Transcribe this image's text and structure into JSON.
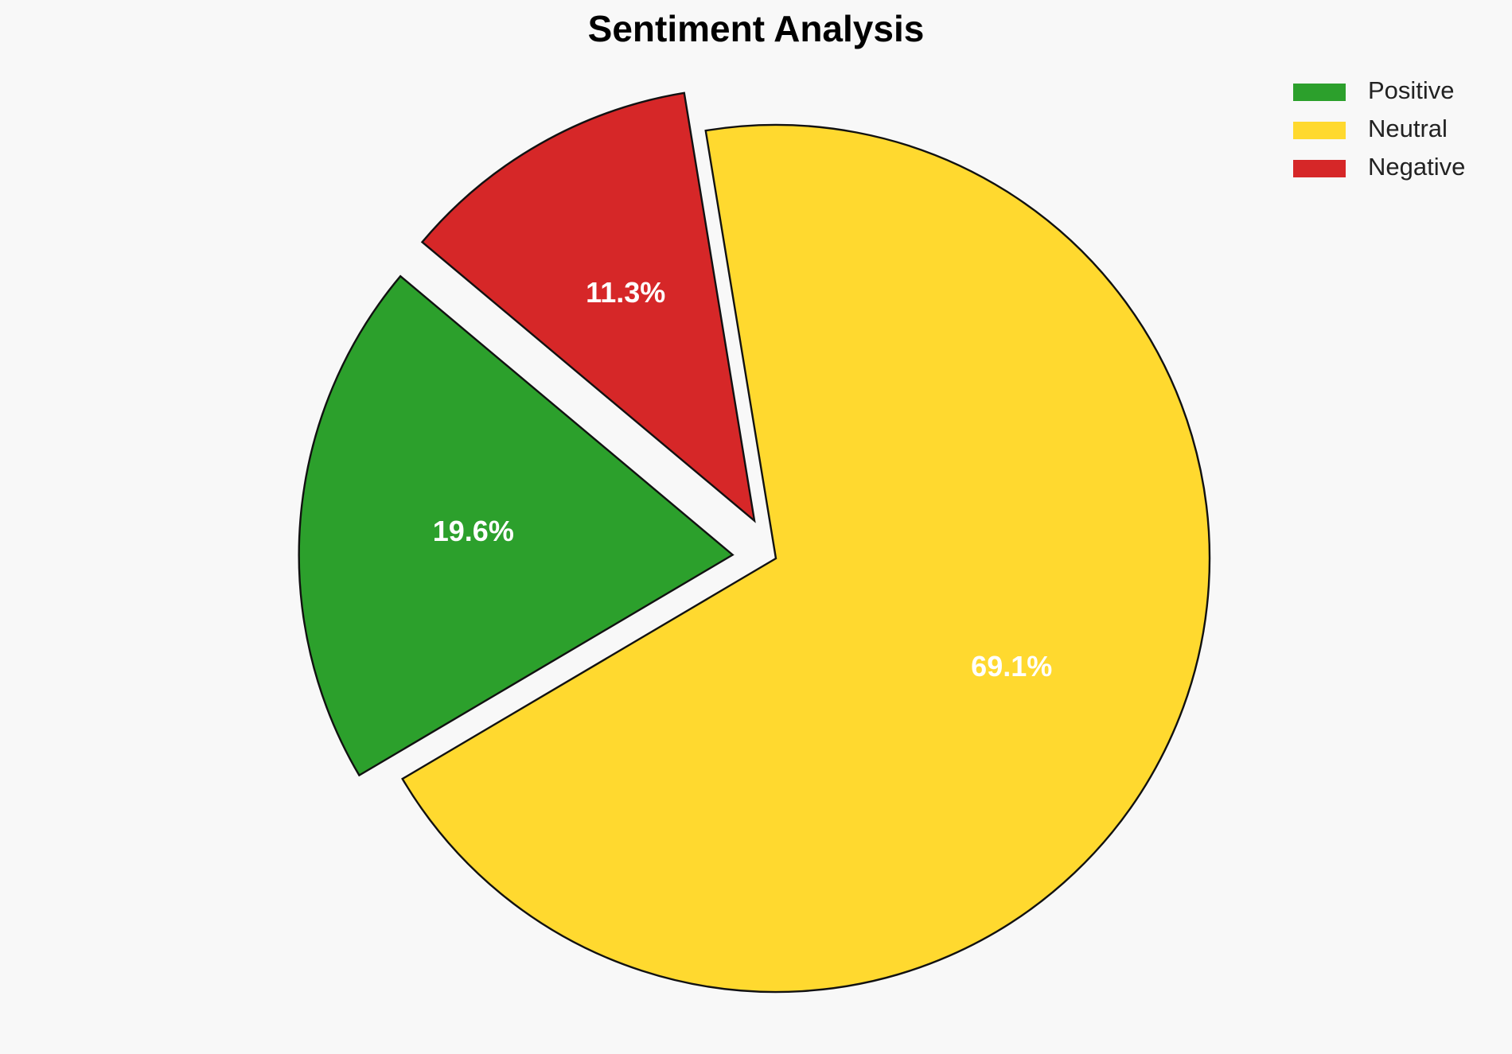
{
  "chart_data": {
    "type": "pie",
    "title": "Sentiment Analysis",
    "categories": [
      "Positive",
      "Neutral",
      "Negative"
    ],
    "values": [
      19.6,
      69.1,
      11.3
    ],
    "value_labels": [
      "19.6%",
      "69.1%",
      "11.3%"
    ],
    "colors": [
      "#2ca02c",
      "#ffd92f",
      "#d62728"
    ],
    "explode": [
      true,
      false,
      true
    ],
    "legend": "upper right"
  }
}
